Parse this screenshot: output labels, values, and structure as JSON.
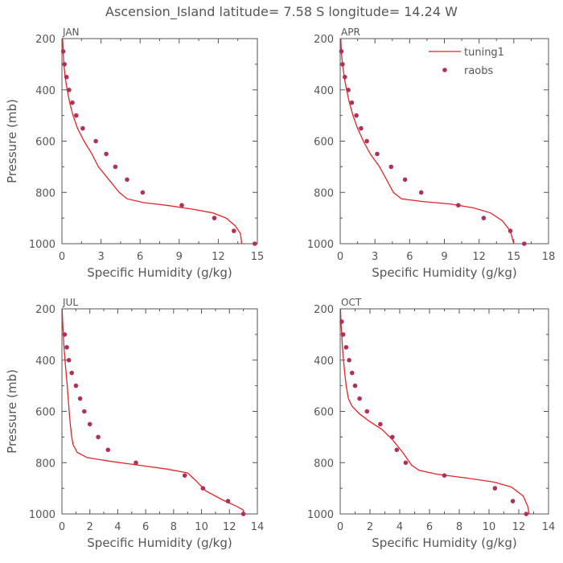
{
  "title": "Ascension_Island   latitude= 7.58 S longitude= 14.24 W",
  "legend": {
    "model_label": "tuning1",
    "obs_label": "raobs"
  },
  "colors": {
    "model": "#e0262a",
    "obs": "#b0305a",
    "axis": "#555555"
  },
  "chart_data": [
    {
      "type": "line",
      "panel": "JAN",
      "title": "JAN",
      "xlabel": "Specific Humidity (g/kg)",
      "ylabel": "Pressure (mb)",
      "xlim": [
        0,
        15
      ],
      "ylim": [
        1000,
        200
      ],
      "xticks": [
        0,
        3,
        6,
        9,
        12,
        15
      ],
      "yticks": [
        200,
        400,
        600,
        800,
        1000
      ],
      "series": [
        {
          "name": "tuning1",
          "kind": "line",
          "points": [
            [
              0.05,
              200
            ],
            [
              0.1,
              250
            ],
            [
              0.15,
              300
            ],
            [
              0.25,
              350
            ],
            [
              0.4,
              400
            ],
            [
              0.6,
              450
            ],
            [
              0.85,
              500
            ],
            [
              1.2,
              550
            ],
            [
              1.7,
              600
            ],
            [
              2.3,
              650
            ],
            [
              2.8,
              700
            ],
            [
              3.6,
              750
            ],
            [
              4.4,
              800
            ],
            [
              5.0,
              825
            ],
            [
              6.3,
              840
            ],
            [
              8.0,
              850
            ],
            [
              10.0,
              865
            ],
            [
              11.6,
              880
            ],
            [
              12.6,
              900
            ],
            [
              13.3,
              930
            ],
            [
              13.7,
              960
            ],
            [
              13.8,
              1000
            ]
          ]
        },
        {
          "name": "raobs",
          "kind": "scatter",
          "points": [
            [
              0.1,
              250
            ],
            [
              0.2,
              300
            ],
            [
              0.35,
              350
            ],
            [
              0.55,
              400
            ],
            [
              0.8,
              450
            ],
            [
              1.1,
              500
            ],
            [
              1.6,
              550
            ],
            [
              2.6,
              600
            ],
            [
              3.4,
              650
            ],
            [
              4.1,
              700
            ],
            [
              5.0,
              750
            ],
            [
              6.2,
              800
            ],
            [
              9.2,
              850
            ],
            [
              11.7,
              900
            ],
            [
              13.2,
              950
            ],
            [
              14.8,
              1000
            ]
          ]
        }
      ]
    },
    {
      "type": "line",
      "panel": "APR",
      "title": "APR",
      "xlabel": "Specific Humidity (g/kg)",
      "ylabel": "",
      "xlim": [
        0,
        18
      ],
      "ylim": [
        1000,
        200
      ],
      "xticks": [
        0,
        3,
        6,
        9,
        12,
        15,
        18
      ],
      "yticks": [
        200,
        400,
        600,
        800,
        1000
      ],
      "series": [
        {
          "name": "tuning1",
          "kind": "line",
          "points": [
            [
              0.05,
              200
            ],
            [
              0.1,
              250
            ],
            [
              0.2,
              300
            ],
            [
              0.35,
              350
            ],
            [
              0.55,
              400
            ],
            [
              0.8,
              450
            ],
            [
              1.1,
              500
            ],
            [
              1.5,
              550
            ],
            [
              2.0,
              600
            ],
            [
              2.6,
              650
            ],
            [
              3.4,
              700
            ],
            [
              4.0,
              750
            ],
            [
              4.6,
              800
            ],
            [
              5.3,
              825
            ],
            [
              7.0,
              835
            ],
            [
              9.5,
              845
            ],
            [
              11.5,
              860
            ],
            [
              13.0,
              880
            ],
            [
              14.0,
              910
            ],
            [
              14.7,
              950
            ],
            [
              15.0,
              1000
            ]
          ]
        },
        {
          "name": "raobs",
          "kind": "scatter",
          "points": [
            [
              0.1,
              250
            ],
            [
              0.2,
              300
            ],
            [
              0.4,
              350
            ],
            [
              0.7,
              400
            ],
            [
              1.0,
              450
            ],
            [
              1.4,
              500
            ],
            [
              1.8,
              550
            ],
            [
              2.3,
              600
            ],
            [
              3.2,
              650
            ],
            [
              4.4,
              700
            ],
            [
              5.6,
              750
            ],
            [
              7.0,
              800
            ],
            [
              10.2,
              850
            ],
            [
              12.4,
              900
            ],
            [
              14.7,
              950
            ],
            [
              15.9,
              1000
            ]
          ]
        }
      ]
    },
    {
      "type": "line",
      "panel": "JUL",
      "title": "JUL",
      "xlabel": "Specific Humidity (g/kg)",
      "ylabel": "Pressure (mb)",
      "xlim": [
        0,
        14
      ],
      "ylim": [
        1000,
        200
      ],
      "xticks": [
        0,
        2,
        4,
        6,
        8,
        10,
        12,
        14
      ],
      "yticks": [
        200,
        400,
        600,
        800,
        1000
      ],
      "series": [
        {
          "name": "tuning1",
          "kind": "line",
          "points": [
            [
              0.02,
              200
            ],
            [
              0.05,
              250
            ],
            [
              0.1,
              300
            ],
            [
              0.15,
              350
            ],
            [
              0.22,
              400
            ],
            [
              0.3,
              450
            ],
            [
              0.38,
              500
            ],
            [
              0.45,
              550
            ],
            [
              0.52,
              600
            ],
            [
              0.6,
              650
            ],
            [
              0.7,
              700
            ],
            [
              0.8,
              730
            ],
            [
              1.1,
              760
            ],
            [
              1.8,
              780
            ],
            [
              3.5,
              795
            ],
            [
              5.5,
              810
            ],
            [
              7.5,
              825
            ],
            [
              9.0,
              840
            ],
            [
              9.6,
              870
            ],
            [
              10.3,
              910
            ],
            [
              11.5,
              945
            ],
            [
              12.5,
              970
            ],
            [
              13.0,
              985
            ],
            [
              13.0,
              1000
            ]
          ]
        },
        {
          "name": "raobs",
          "kind": "scatter",
          "points": [
            [
              0.2,
              300
            ],
            [
              0.35,
              350
            ],
            [
              0.5,
              400
            ],
            [
              0.7,
              450
            ],
            [
              1.0,
              500
            ],
            [
              1.3,
              550
            ],
            [
              1.6,
              600
            ],
            [
              2.0,
              650
            ],
            [
              2.6,
              700
            ],
            [
              3.3,
              750
            ],
            [
              5.3,
              800
            ],
            [
              8.8,
              850
            ],
            [
              10.1,
              900
            ],
            [
              11.9,
              950
            ],
            [
              13.0,
              1000
            ]
          ]
        }
      ]
    },
    {
      "type": "line",
      "panel": "OCT",
      "title": "OCT",
      "xlabel": "Specific Humidity (g/kg)",
      "ylabel": "",
      "xlim": [
        0,
        14
      ],
      "ylim": [
        1000,
        200
      ],
      "xticks": [
        0,
        2,
        4,
        6,
        8,
        10,
        12,
        14
      ],
      "yticks": [
        200,
        400,
        600,
        800,
        1000
      ],
      "series": [
        {
          "name": "tuning1",
          "kind": "line",
          "points": [
            [
              0.02,
              200
            ],
            [
              0.05,
              250
            ],
            [
              0.1,
              300
            ],
            [
              0.15,
              350
            ],
            [
              0.22,
              400
            ],
            [
              0.3,
              450
            ],
            [
              0.4,
              500
            ],
            [
              0.55,
              550
            ],
            [
              0.8,
              580
            ],
            [
              1.3,
              610
            ],
            [
              2.0,
              640
            ],
            [
              2.8,
              670
            ],
            [
              3.5,
              710
            ],
            [
              4.2,
              760
            ],
            [
              4.8,
              810
            ],
            [
              5.3,
              830
            ],
            [
              6.5,
              845
            ],
            [
              8.5,
              860
            ],
            [
              10.3,
              875
            ],
            [
              11.5,
              895
            ],
            [
              12.3,
              930
            ],
            [
              12.6,
              970
            ],
            [
              12.7,
              1000
            ]
          ]
        },
        {
          "name": "raobs",
          "kind": "scatter",
          "points": [
            [
              0.1,
              250
            ],
            [
              0.2,
              300
            ],
            [
              0.4,
              350
            ],
            [
              0.6,
              400
            ],
            [
              0.8,
              450
            ],
            [
              1.0,
              500
            ],
            [
              1.3,
              550
            ],
            [
              1.8,
              600
            ],
            [
              2.7,
              650
            ],
            [
              3.5,
              700
            ],
            [
              3.8,
              750
            ],
            [
              4.4,
              800
            ],
            [
              7.0,
              850
            ],
            [
              10.4,
              900
            ],
            [
              11.6,
              950
            ],
            [
              12.5,
              1000
            ]
          ]
        }
      ]
    }
  ]
}
